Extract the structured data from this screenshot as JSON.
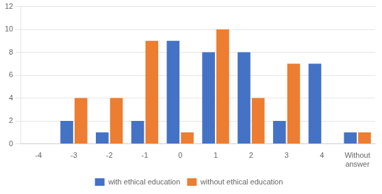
{
  "chart_data": {
    "type": "bar",
    "categories": [
      "-4",
      "-3",
      "-2",
      "-1",
      "0",
      "1",
      "2",
      "3",
      "4",
      "Without\nanswer"
    ],
    "series": [
      {
        "name": "with ethical education",
        "color": "#4472C4",
        "values": [
          0,
          2,
          1,
          2,
          9,
          8,
          8,
          2,
          7,
          1
        ]
      },
      {
        "name": "without ethical education",
        "color": "#ED7D31",
        "values": [
          0,
          4,
          4,
          9,
          1,
          10,
          4,
          7,
          0,
          1
        ]
      }
    ],
    "ylim": [
      0,
      12
    ],
    "yticks": [
      0,
      2,
      4,
      6,
      8,
      10,
      12
    ],
    "grid": true,
    "legend": "bottom"
  }
}
